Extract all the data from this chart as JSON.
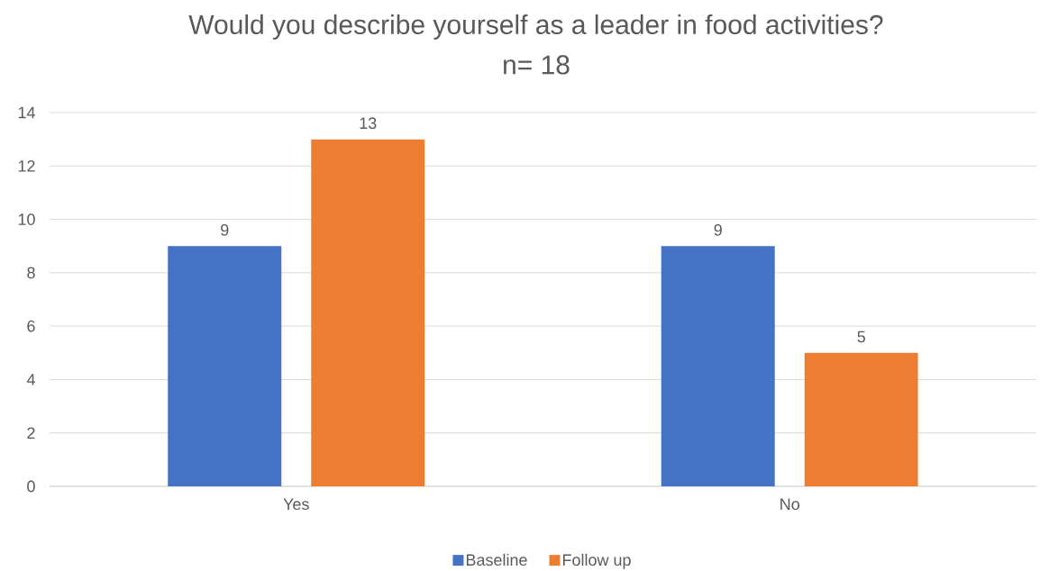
{
  "chart_data": {
    "type": "bar",
    "title": "Would you describe yourself as a leader in food activities?",
    "subtitle": "n= 18",
    "categories": [
      "Yes",
      "No"
    ],
    "series": [
      {
        "name": "Baseline",
        "color": "#4472c4",
        "values": [
          9,
          9
        ]
      },
      {
        "name": "Follow up",
        "color": "#ed7d31",
        "values": [
          13,
          5
        ]
      }
    ],
    "ylim": [
      0,
      14
    ],
    "yticks": [
      0,
      2,
      4,
      6,
      8,
      10,
      12,
      14
    ],
    "grid": "y",
    "legend": "bottom",
    "data_labels": true
  }
}
